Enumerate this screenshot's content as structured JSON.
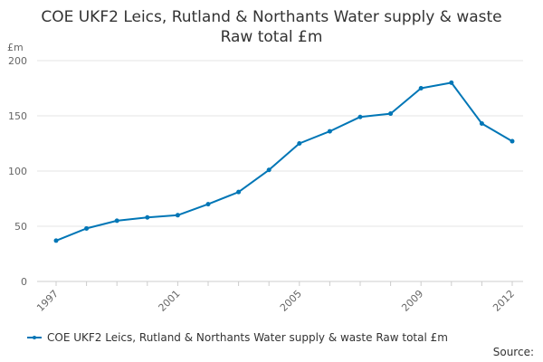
{
  "colors": {
    "series": "#0076b6",
    "grid": "#e6e6e6",
    "axis_text": "#666666",
    "title_text": "#333333"
  },
  "chart_data": {
    "type": "line",
    "title_lines": [
      "COE UKF2 Leics, Rutland & Northants Water supply & waste",
      "Raw total £m"
    ],
    "ylabel": "£m",
    "xlabel": "",
    "ylim": [
      0,
      200
    ],
    "yticks": [
      0,
      50,
      100,
      150,
      200
    ],
    "xlim": [
      1997,
      2012
    ],
    "xticks": [
      1997,
      2001,
      2005,
      2009,
      2012
    ],
    "grid": true,
    "legend_position": "bottom-left",
    "series": [
      {
        "name": "COE UKF2 Leics, Rutland & Northants Water supply & waste Raw total £m",
        "x": [
          1997,
          1998,
          1999,
          2000,
          2001,
          2002,
          2003,
          2004,
          2005,
          2006,
          2007,
          2008,
          2009,
          2010,
          2011,
          2012
        ],
        "values": [
          37,
          48,
          55,
          58,
          60,
          70,
          81,
          101,
          125,
          136,
          149,
          152,
          175,
          180,
          143,
          127
        ]
      }
    ]
  },
  "legend": {
    "label": "COE UKF2 Leics, Rutland & Northants Water supply & waste Raw total £m"
  },
  "source": {
    "label": "Source:"
  }
}
